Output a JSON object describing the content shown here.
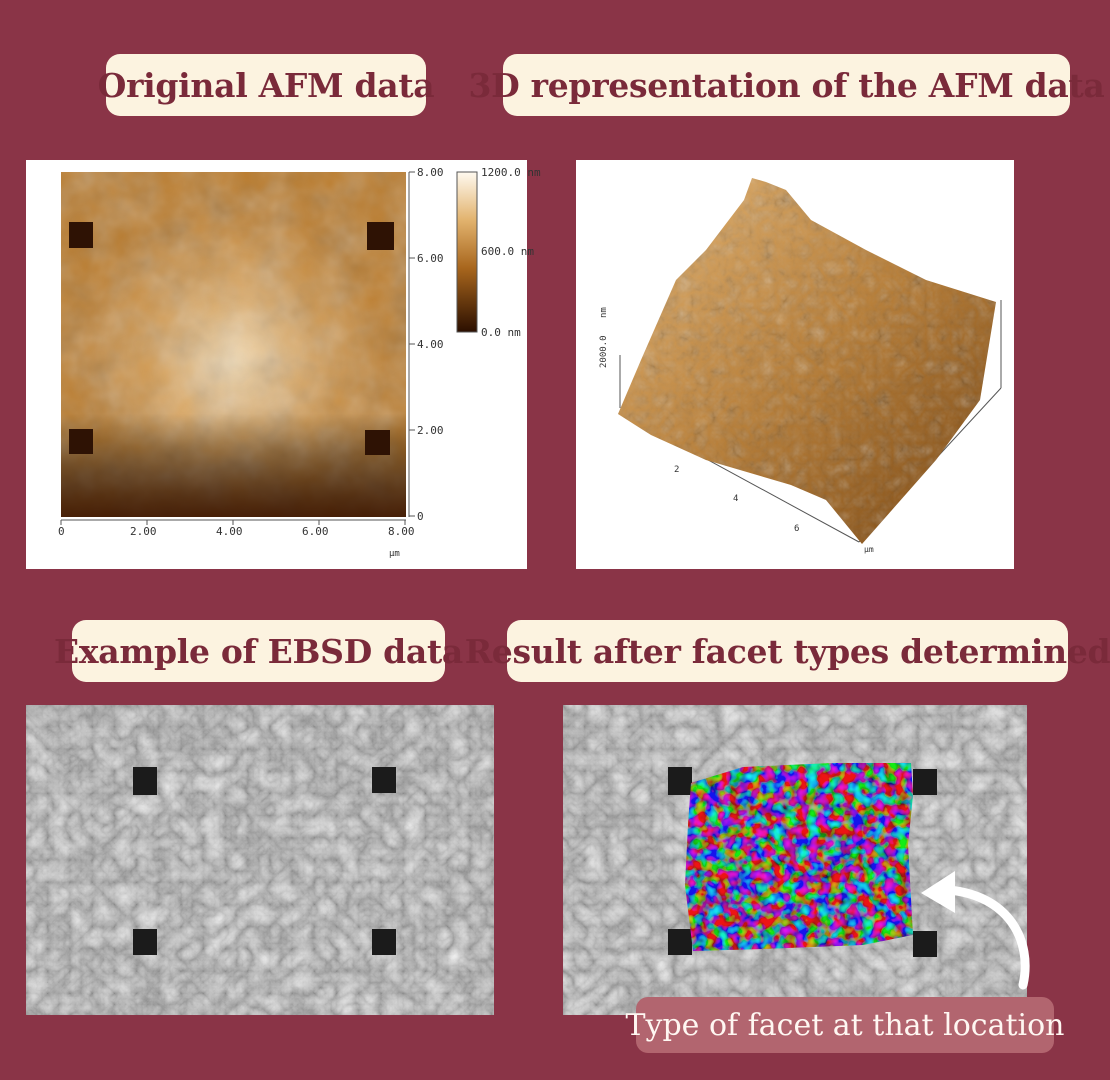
{
  "labels": {
    "original_afm": "Original AFM data",
    "afm_3d": "3D representation of the AFM data",
    "ebsd_example": "Example of EBSD data",
    "result_facets": "Result after facet types determined"
  },
  "callout": {
    "text": "Type of facet at that location"
  },
  "afm_2d": {
    "y_ticks": [
      "8.00",
      "6.00",
      "4.00",
      "2.00",
      "0"
    ],
    "x_ticks": [
      "0",
      "2.00",
      "4.00",
      "6.00",
      "8.00"
    ],
    "x_unit": "µm",
    "colorbar_max": "1200.0 nm",
    "colorbar_mid": "600.0 nm",
    "colorbar_min": "0.0 nm"
  },
  "afm_3d_plot": {
    "z_unit": "nm",
    "z_value": "2000.0",
    "x_ticks": [
      "2",
      "4",
      "6"
    ],
    "x_unit": "µm"
  },
  "colors": {
    "background": "#8a3447",
    "label_bg": "#fcf3e0",
    "label_text": "#7a2a3a",
    "callout_bg": "#b2656f",
    "callout_text": "#fff7f2"
  }
}
